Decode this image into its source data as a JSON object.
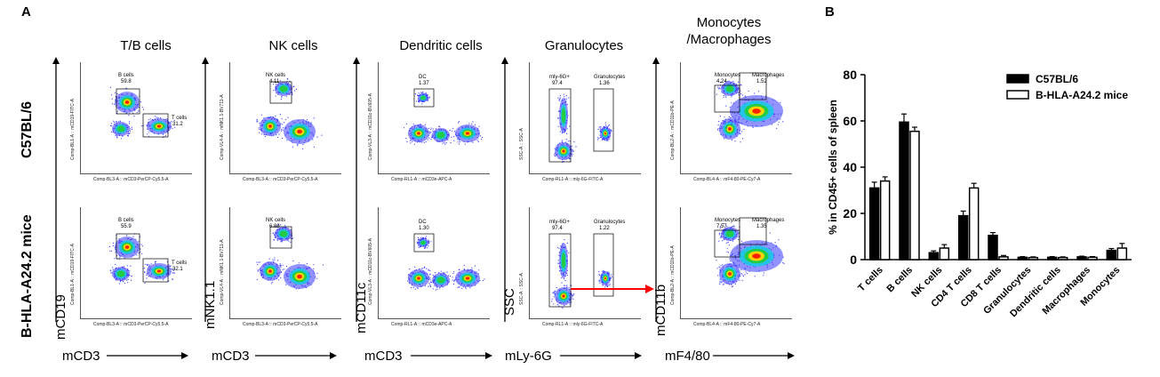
{
  "panel_a_label": "A",
  "panel_b_label": "B",
  "columns": [
    {
      "title": "T/B cells",
      "y_marker": "mCD19",
      "x_marker": "mCD3",
      "y_caption": "Comp-BL1-A :: mCD19-FITC-A",
      "x_caption": "Comp-BL3-A :: mCD3-PerCP-Cy5.5-A"
    },
    {
      "title": "NK cells",
      "y_marker": "mNK1.1",
      "x_marker": "mCD3",
      "y_caption": "Comp-VL4-A :: mNK1.1-BV711-A",
      "x_caption": "Comp-BL3-A :: mCD3-PerCP-Cy5.5-A"
    },
    {
      "title": "Dendritic cells",
      "y_marker": "mCD11c",
      "x_marker": "mCD3",
      "y_caption": "Comp-VL3-A :: mCD11c-BV605-A",
      "x_caption": "Comp-RL1-A :: mCD3e-APC-A"
    },
    {
      "title": "Granulocytes",
      "y_marker": "SSC",
      "x_marker": "mLy-6G",
      "y_caption": "SSC-A :: SSC-A",
      "x_caption": "Comp-RL1-A :: mly-6G-FITC-A"
    },
    {
      "title": "Monocytes\n/Macrophages",
      "y_marker": "mCD11b",
      "x_marker": "mF4/80",
      "y_caption": "Comp-BL2-A :: mCD11b-PE-A",
      "x_caption": "Comp-BL4-A :: mF4-80-PE-Cy7-A"
    }
  ],
  "rows": [
    {
      "label": "C57BL/6"
    },
    {
      "label": "B-HLA-A24.2 mice"
    }
  ],
  "gates": [
    [
      [
        {
          "name": "B cells",
          "value": "59.8"
        },
        {
          "name": "T cells",
          "value": "31.2"
        }
      ],
      [
        {
          "name": "NK cells",
          "value": "4.11"
        }
      ],
      [
        {
          "name": "DC",
          "value": "1.37"
        }
      ],
      [
        {
          "name": "mly-6G+",
          "value": "97.4"
        },
        {
          "name": "Granulocytes",
          "value": "1.36"
        }
      ],
      [
        {
          "name": "Monocytes",
          "value": "4.24"
        },
        {
          "name": "Macrophages",
          "value": "1.52"
        }
      ]
    ],
    [
      [
        {
          "name": "B cells",
          "value": "55.9"
        },
        {
          "name": "T cells",
          "value": "32.1"
        }
      ],
      [
        {
          "name": "NK cells",
          "value": "6.86"
        }
      ],
      [
        {
          "name": "DC",
          "value": "1.30"
        }
      ],
      [
        {
          "name": "mly-6G+",
          "value": "97.4"
        },
        {
          "name": "Granulocytes",
          "value": "1.22"
        }
      ],
      [
        {
          "name": "Monocytes",
          "value": "7.57"
        },
        {
          "name": "Macrophages",
          "value": "1.35"
        }
      ]
    ]
  ],
  "colors": {
    "c57": "#000000",
    "hla": "#ffffff",
    "arrow": "#ff0000",
    "density_low": "#3a3aff",
    "density_mid": "#22cc44",
    "density_high": "#ff2200"
  },
  "chart_data": {
    "type": "bar",
    "categories": [
      "T cells",
      "B cells",
      "NK cells",
      "CD4 T cells",
      "CD8 T cells",
      "Granulocytes",
      "Dendritic cells",
      "Macrophages",
      "Monocytes"
    ],
    "series": [
      {
        "name": "C57BL/6",
        "values": [
          31,
          59.5,
          3,
          19,
          10.5,
          1,
          1,
          1.2,
          4
        ],
        "errors": [
          2.5,
          3.5,
          0.8,
          2,
          1.2,
          0.3,
          0.3,
          0.3,
          0.8
        ],
        "fill": "#000000"
      },
      {
        "name": "B-HLA-A24.2 mice",
        "values": [
          34,
          55.5,
          5,
          31,
          1.2,
          0.9,
          0.9,
          1,
          5
        ],
        "errors": [
          1.8,
          1.8,
          1.5,
          2,
          0.6,
          0.3,
          0.3,
          0.3,
          2
        ],
        "fill": "#ffffff"
      }
    ],
    "ylabel": "% in CD45+ cells of spleen",
    "xlabel": "",
    "ylim": [
      0,
      80
    ],
    "yticks": [
      0,
      20,
      40,
      60,
      80
    ],
    "legend_position": "top-right",
    "grid": false
  }
}
